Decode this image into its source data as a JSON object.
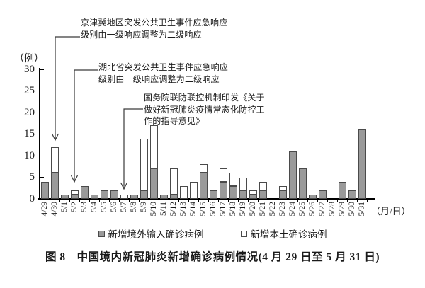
{
  "figure": {
    "caption": "图 8　中国境内新冠肺炎新增确诊病例情况(4 月 29 日至 5 月 31 日)"
  },
  "chart_data": {
    "type": "bar",
    "stacked": true,
    "title": "图 8 中国境内新冠肺炎新增确诊病例情况(4月29日至5月31日)",
    "unit_label": "（例）",
    "x_axis_label": "（月/日）",
    "xlabel": "月/日",
    "ylabel": "例",
    "ylim": [
      0,
      30
    ],
    "yticks": [
      0,
      5,
      10,
      15,
      20,
      25,
      30
    ],
    "grid": false,
    "legend_position": "bottom",
    "categories": [
      "4/29",
      "4/30",
      "5/1",
      "5/2",
      "5/3",
      "5/4",
      "5/5",
      "5/6",
      "5/7",
      "5/8",
      "5/9",
      "5/10",
      "5/11",
      "5/12",
      "5/13",
      "5/14",
      "5/15",
      "5/16",
      "5/17",
      "5/18",
      "5/19",
      "5/20",
      "5/21",
      "5/22",
      "5/23",
      "5/24",
      "5/25",
      "5/26",
      "5/27",
      "5/28",
      "5/29",
      "5/30",
      "5/31"
    ],
    "series": [
      {
        "name": "新增境外输入确诊病例",
        "fill": "#9a9a9a",
        "border": "#4a4a4a",
        "values": [
          4,
          6,
          1,
          1,
          3,
          1,
          2,
          2,
          0,
          1,
          2,
          7,
          1,
          1,
          0,
          0,
          6,
          2,
          4,
          3,
          2,
          1,
          2,
          0,
          2,
          11,
          7,
          1,
          2,
          0,
          4,
          2,
          16
        ]
      },
      {
        "name": "新增本土确诊病例",
        "fill": "#ffffff",
        "border": "#4a4a4a",
        "values": [
          0,
          6,
          0,
          1,
          0,
          0,
          0,
          0,
          1,
          0,
          12,
          10,
          0,
          6,
          3,
          4,
          2,
          3,
          3,
          3,
          3,
          1,
          2,
          0,
          1,
          0,
          0,
          0,
          0,
          0,
          0,
          0,
          0
        ]
      }
    ],
    "annotations": [
      {
        "text": "京津冀地区突发公共卫生事件应急响应\n级别由一级响应调整为二级响应",
        "target_date": "4/30"
      },
      {
        "text": "湖北省突发公共卫生事件应急响应\n级别由一级响应调整为二级响应",
        "target_date": "5/2"
      },
      {
        "text": "国务院联防联控机制印发《关于\n做好新冠肺炎疫情常态化防控工\n作的指导意见》",
        "target_date": "5/7"
      }
    ]
  },
  "colors": {
    "bar_imported": "#9a9a9a",
    "bar_local": "#ffffff",
    "bar_border": "#4a4a4a",
    "axis": "#000000",
    "leader_line": "#3a3a3a",
    "text": "#1a1a1a"
  }
}
